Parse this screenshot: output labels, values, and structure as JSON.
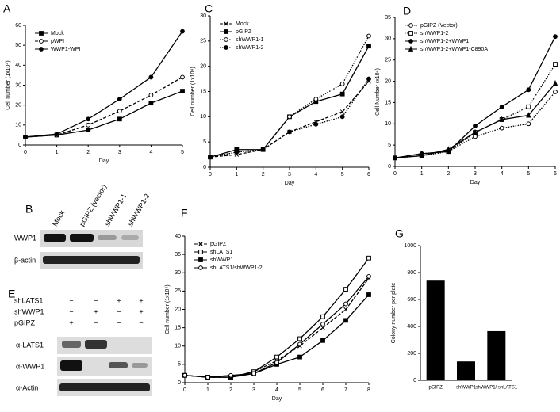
{
  "chart_data": [
    {
      "type": "line",
      "panel": "A",
      "xlabel": "Day",
      "ylabel": "Cell number (1x10⁴)",
      "x": [
        0,
        1,
        2,
        3,
        4,
        5
      ],
      "xlim": [
        0,
        5
      ],
      "xticks": [
        0,
        1,
        2,
        3,
        4,
        5
      ],
      "ylim": [
        0,
        60
      ],
      "yticks": [
        0,
        10,
        20,
        30,
        40,
        50,
        60
      ],
      "series": [
        {
          "name": "Mock",
          "color": "#000000",
          "line_style": "solid",
          "marker": "square",
          "values": [
            4,
            5,
            7.5,
            13,
            21,
            27
          ]
        },
        {
          "name": "pWPI",
          "color": "#000000",
          "line_style": "dashed",
          "marker": "circle-open",
          "values": [
            4,
            5,
            10,
            17,
            25,
            34
          ]
        },
        {
          "name": "WWP1-WPI",
          "color": "#000000",
          "line_style": "solid",
          "marker": "circle",
          "values": [
            4,
            5.5,
            13,
            23,
            34,
            57
          ]
        }
      ]
    },
    {
      "type": "line",
      "panel": "C",
      "xlabel": "Day",
      "ylabel": "Cell number (1x10⁴)",
      "x": [
        0,
        1,
        2,
        3,
        4,
        5,
        6
      ],
      "xlim": [
        0,
        6
      ],
      "xticks": [
        0,
        1,
        2,
        3,
        4,
        5,
        6
      ],
      "ylim": [
        0,
        30
      ],
      "yticks": [
        0,
        5,
        10,
        15,
        20,
        25,
        30
      ],
      "series": [
        {
          "name": "Mock",
          "color": "#000000",
          "line_style": "dashed",
          "marker": "x",
          "values": [
            2,
            2.5,
            3.5,
            7,
            9,
            11,
            17
          ]
        },
        {
          "name": "pGIPZ",
          "color": "#000000",
          "line_style": "solid",
          "marker": "square",
          "values": [
            2,
            3.5,
            3.5,
            10,
            13,
            14.5,
            24
          ]
        },
        {
          "name": "shWWP1-1",
          "color": "#000000",
          "line_style": "dotted",
          "marker": "circle-open",
          "values": [
            2,
            3,
            3.5,
            10,
            13.5,
            16.5,
            26
          ]
        },
        {
          "name": "shWWP1-2",
          "color": "#000000",
          "line_style": "dotted",
          "marker": "circle",
          "values": [
            2,
            3,
            3.5,
            7,
            8.5,
            10,
            17.5
          ]
        }
      ]
    },
    {
      "type": "line",
      "panel": "D",
      "xlabel": "Day",
      "ylabel": "Cell Number (x10⁴)",
      "x": [
        0,
        1,
        2,
        3,
        4,
        5,
        6
      ],
      "xlim": [
        0,
        6
      ],
      "xticks": [
        0,
        1,
        2,
        3,
        4,
        5,
        6
      ],
      "ylim": [
        0,
        35
      ],
      "yticks": [
        0,
        5,
        10,
        15,
        20,
        25,
        30,
        35
      ],
      "series": [
        {
          "name": "pGIPZ (Vector)",
          "color": "#000000",
          "line_style": "dotted",
          "marker": "circle-open",
          "values": [
            2,
            3,
            3.5,
            7,
            9,
            10,
            17.5
          ]
        },
        {
          "name": "shWWP1-2",
          "color": "#000000",
          "line_style": "dotted",
          "marker": "square-open",
          "values": [
            2,
            2.5,
            3.5,
            8,
            11,
            14,
            24
          ]
        },
        {
          "name": "shWWP1-2+WWP1",
          "color": "#000000",
          "line_style": "solid",
          "marker": "circle",
          "values": [
            2,
            3,
            3.5,
            9.5,
            14,
            18,
            30.5
          ]
        },
        {
          "name": "shWWP1-2+WWP1-C890A",
          "color": "#000000",
          "line_style": "solid",
          "marker": "triangle",
          "values": [
            2,
            2.5,
            4,
            8,
            11,
            12,
            19.5
          ]
        }
      ]
    },
    {
      "type": "line",
      "panel": "F",
      "xlabel": "Day",
      "ylabel": "Cell number (1x10⁴)",
      "x": [
        0,
        1,
        2,
        3,
        4,
        5,
        6,
        7,
        8
      ],
      "xlim": [
        0,
        8
      ],
      "xticks": [
        0,
        1,
        2,
        3,
        4,
        5,
        6,
        7,
        8
      ],
      "ylim": [
        0,
        40
      ],
      "yticks": [
        0,
        5,
        10,
        15,
        20,
        25,
        30,
        35,
        40
      ],
      "series": [
        {
          "name": "pGIPZ",
          "color": "#000000",
          "line_style": "dashed",
          "marker": "x",
          "values": [
            2,
            1.5,
            1.5,
            3,
            6,
            10,
            15,
            20,
            28.5
          ]
        },
        {
          "name": "shLATS1",
          "color": "#000000",
          "line_style": "solid",
          "marker": "square-open",
          "values": [
            2,
            1.5,
            1.5,
            3,
            7,
            12,
            18,
            25.5,
            34
          ]
        },
        {
          "name": "shWWP1",
          "color": "#000000",
          "line_style": "solid",
          "marker": "square",
          "values": [
            2,
            1.5,
            1.5,
            2.5,
            5,
            7,
            11.5,
            17,
            24
          ]
        },
        {
          "name": "shLATS1/shWWP1-2",
          "color": "#000000",
          "line_style": "solid",
          "marker": "circle-open",
          "values": [
            2,
            1.5,
            2,
            2.5,
            5.5,
            10.5,
            16,
            21.5,
            29
          ]
        }
      ]
    },
    {
      "type": "bar",
      "panel": "G",
      "ylabel": "Colony number per plate",
      "categories": [
        "pGIPZ",
        "shWWP1",
        "shWWP1/ shLATS1"
      ],
      "values": [
        740,
        140,
        365
      ],
      "color": "#000000",
      "ylim": [
        0,
        1000
      ],
      "yticks": [
        0,
        200,
        400,
        600,
        800,
        1000
      ]
    }
  ],
  "blot_b": {
    "panel": "B",
    "lanes": [
      "Mock",
      "pGIPZ (vector)",
      "shWWP1-1",
      "shWWP1-2"
    ],
    "rows": [
      "WWP1",
      "β-actin"
    ]
  },
  "blot_e": {
    "panel": "E",
    "conditions": [
      {
        "name": "shLATS1",
        "signs": [
          "−",
          "−",
          "+",
          "+"
        ]
      },
      {
        "name": "shWWP1",
        "signs": [
          "−",
          "+",
          "−",
          "+"
        ]
      },
      {
        "name": "pGIPZ",
        "signs": [
          "+",
          "−",
          "−",
          "−"
        ]
      }
    ],
    "rows": [
      "α-LATS1",
      "α-WWP1",
      "α-Actin"
    ]
  }
}
